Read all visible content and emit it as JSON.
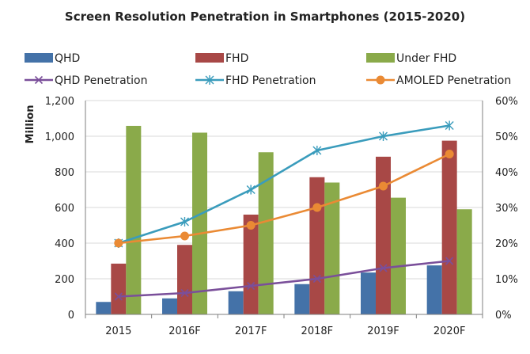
{
  "chart_data": {
    "type": "bar",
    "title": "Screen Resolution Penetration in Smartphones (2015-2020)",
    "ylabel": "Million",
    "categories": [
      "2015",
      "2016F",
      "2017F",
      "2018F",
      "2019F",
      "2020F"
    ],
    "ylim": [
      0,
      1200
    ],
    "y_ticks": [
      "0",
      "200",
      "400",
      "600",
      "800",
      "1,000",
      "1,200"
    ],
    "y2lim": [
      0,
      0.6
    ],
    "y2_ticks": [
      "0%",
      "10%",
      "20%",
      "30%",
      "40%",
      "50%",
      "60%"
    ],
    "grid": true,
    "legend_position": "top",
    "bar_series": [
      {
        "name": "QHD",
        "color": "#4472a8",
        "values": [
          70,
          90,
          130,
          170,
          235,
          275
        ]
      },
      {
        "name": "FHD",
        "color": "#a84846",
        "values": [
          285,
          390,
          560,
          770,
          885,
          975
        ]
      },
      {
        "name": "Under FHD",
        "color": "#8aaa4a",
        "values": [
          1058,
          1020,
          910,
          740,
          655,
          590
        ]
      }
    ],
    "line_series": [
      {
        "name": "QHD Penetration",
        "color": "#7a4f9a",
        "marker": "x",
        "axis": "right",
        "values": [
          0.05,
          0.06,
          0.08,
          0.1,
          0.13,
          0.15
        ]
      },
      {
        "name": "FHD Penetration",
        "color": "#3a9cbc",
        "marker": "star",
        "axis": "right",
        "values": [
          0.2,
          0.26,
          0.35,
          0.46,
          0.5,
          0.53
        ]
      },
      {
        "name": "AMOLED Penetration",
        "color": "#ea8a34",
        "marker": "circle",
        "axis": "right",
        "values": [
          0.2,
          0.22,
          0.25,
          0.3,
          0.36,
          0.45
        ]
      }
    ]
  }
}
